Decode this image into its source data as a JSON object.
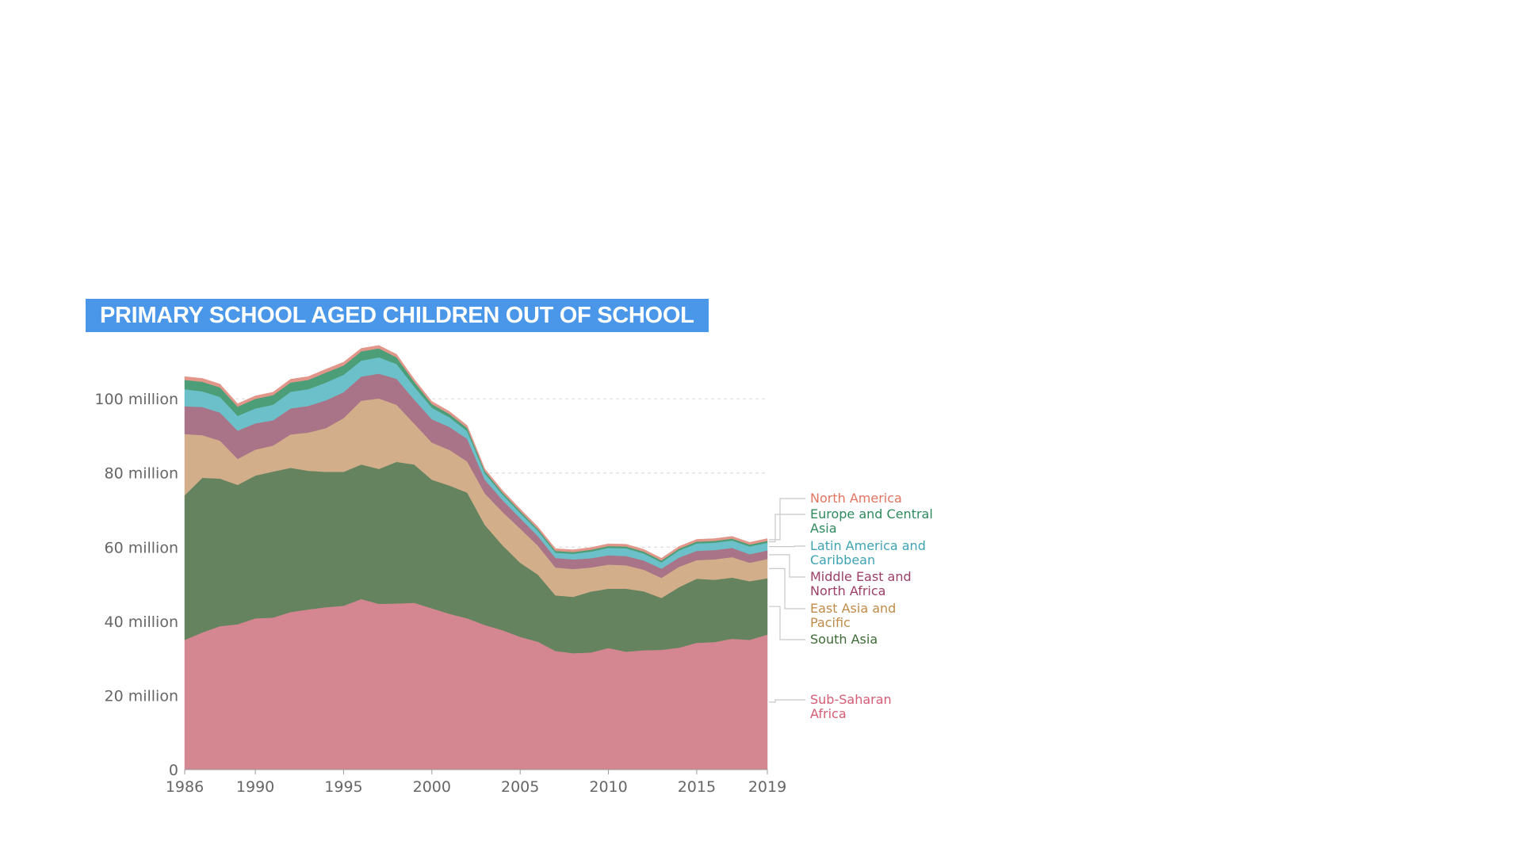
{
  "chart_data": {
    "type": "area",
    "stacked": true,
    "title": "PRIMARY SCHOOL AGED CHILDREN OUT OF SCHOOL",
    "xlabel": "",
    "ylabel": "",
    "x": [
      1986,
      1987,
      1988,
      1989,
      1990,
      1991,
      1992,
      1993,
      1994,
      1995,
      1996,
      1997,
      1998,
      1999,
      2000,
      2001,
      2002,
      2003,
      2004,
      2005,
      2006,
      2007,
      2008,
      2009,
      2010,
      2011,
      2012,
      2013,
      2014,
      2015,
      2016,
      2017,
      2018,
      2019
    ],
    "xlim": [
      1986,
      2019
    ],
    "ylim": [
      0,
      115000000
    ],
    "x_ticks": [
      {
        "value": 1986,
        "label": "1986"
      },
      {
        "value": 1990,
        "label": "1990"
      },
      {
        "value": 1995,
        "label": "1995"
      },
      {
        "value": 2000,
        "label": "2000"
      },
      {
        "value": 2005,
        "label": "2005"
      },
      {
        "value": 2010,
        "label": "2010"
      },
      {
        "value": 2015,
        "label": "2015"
      },
      {
        "value": 2019,
        "label": "2019"
      }
    ],
    "y_ticks": [
      {
        "value": 0,
        "label": "0"
      },
      {
        "value": 20000000,
        "label": "20 million"
      },
      {
        "value": 40000000,
        "label": "40 million"
      },
      {
        "value": 60000000,
        "label": "60 million"
      },
      {
        "value": 80000000,
        "label": "80 million"
      },
      {
        "value": 100000000,
        "label": "100 million"
      }
    ],
    "grid": "horizontal-dashed",
    "legend_position": "right",
    "series": [
      {
        "name": "Sub-Saharan Africa",
        "label_lines": [
          "Sub-Saharan",
          "Africa"
        ],
        "color": "#d58791",
        "label_color": "#d45c74",
        "values": [
          35000000,
          37000000,
          38700000,
          39200000,
          40800000,
          41000000,
          42500000,
          43200000,
          43800000,
          44200000,
          46000000,
          44700000,
          44800000,
          45000000,
          43500000,
          42000000,
          40800000,
          39000000,
          37600000,
          35800000,
          34500000,
          32000000,
          31400000,
          31600000,
          32800000,
          31800000,
          32200000,
          32300000,
          32900000,
          34200000,
          34400000,
          35300000,
          35000000,
          36400000
        ]
      },
      {
        "name": "South Asia",
        "label_lines": [
          "South Asia"
        ],
        "color": "#668360",
        "label_color": "#3d6b36",
        "values": [
          39000000,
          41700000,
          39800000,
          37600000,
          38500000,
          39400000,
          38900000,
          37400000,
          36500000,
          36100000,
          36300000,
          36400000,
          38200000,
          37300000,
          34700000,
          34600000,
          33900000,
          27000000,
          22900000,
          20000000,
          18100000,
          15000000,
          15200000,
          16400000,
          16000000,
          17000000,
          15900000,
          14000000,
          16300000,
          17300000,
          16800000,
          16500000,
          15800000,
          15200000
        ]
      },
      {
        "name": "East Asia and Pacific",
        "label_lines": [
          "East Asia and",
          "Pacific"
        ],
        "color": "#d3ae8b",
        "label_color": "#c08a47",
        "values": [
          16500000,
          11500000,
          10200000,
          7000000,
          7000000,
          7000000,
          9000000,
          10300000,
          11800000,
          14500000,
          17200000,
          19000000,
          15400000,
          11000000,
          10000000,
          9600000,
          8400000,
          8500000,
          9000000,
          9200000,
          7800000,
          7500000,
          7500000,
          6500000,
          6500000,
          6300000,
          5800000,
          5400000,
          5500000,
          5000000,
          5500000,
          5500000,
          5000000,
          5200000
        ]
      },
      {
        "name": "Middle East and North Africa",
        "label_lines": [
          "Middle East and",
          "North Africa"
        ],
        "color": "#aa7488",
        "label_color": "#9b3f65",
        "values": [
          7500000,
          7600000,
          7600000,
          7600000,
          7100000,
          6800000,
          7000000,
          7200000,
          7500000,
          7000000,
          6500000,
          6700000,
          7000000,
          6500000,
          6300000,
          6200000,
          6100000,
          3700000,
          3200000,
          2800000,
          2600000,
          2600000,
          2600000,
          2500000,
          2500000,
          2500000,
          2500000,
          2500000,
          2500000,
          2500000,
          2500000,
          2500000,
          2300000,
          2300000
        ]
      },
      {
        "name": "Latin America and Caribbean",
        "label_lines": [
          "Latin America and",
          "Caribbean"
        ],
        "color": "#6cc0c9",
        "label_color": "#3fa3b3",
        "values": [
          4600000,
          4200000,
          4200000,
          4000000,
          4000000,
          4200000,
          4500000,
          4500000,
          4800000,
          4700000,
          4300000,
          4400000,
          4000000,
          3500000,
          3100000,
          2600000,
          2100000,
          1700000,
          1500000,
          1400000,
          1400000,
          1400000,
          1500000,
          1800000,
          2000000,
          2100000,
          1900000,
          1700000,
          1900000,
          2000000,
          2000000,
          2000000,
          2100000,
          2100000
        ]
      },
      {
        "name": "Europe and Central Asia",
        "label_lines": [
          "Europe and Central",
          "Asia"
        ],
        "color": "#4c9e78",
        "label_color": "#2d8a5d",
        "values": [
          2500000,
          2600000,
          2600000,
          2500000,
          2600000,
          2600000,
          2500000,
          2500000,
          2700000,
          2500000,
          2500000,
          2400000,
          1800000,
          1300000,
          1000000,
          900000,
          800000,
          600000,
          500000,
          500000,
          500000,
          500000,
          500000,
          500000,
          500000,
          500000,
          500000,
          500000,
          500000,
          500000,
          500000,
          500000,
          500000,
          500000
        ]
      },
      {
        "name": "North America",
        "label_lines": [
          "North America"
        ],
        "color": "#e2968a",
        "label_color": "#e2735f",
        "values": [
          900000,
          900000,
          900000,
          800000,
          800000,
          800000,
          900000,
          900000,
          900000,
          900000,
          800000,
          800000,
          800000,
          700000,
          700000,
          700000,
          700000,
          600000,
          600000,
          600000,
          600000,
          600000,
          600000,
          600000,
          600000,
          600000,
          600000,
          600000,
          600000,
          600000,
          600000,
          600000,
          600000,
          600000
        ]
      }
    ]
  }
}
